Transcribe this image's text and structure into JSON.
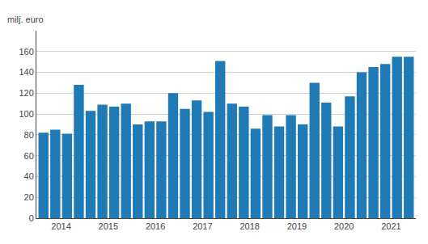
{
  "chart_data": {
    "type": "bar",
    "ylabel": "milj. euro",
    "categories": [
      2014,
      null,
      null,
      null,
      2015,
      null,
      null,
      null,
      2016,
      null,
      null,
      null,
      2017,
      null,
      null,
      null,
      2018,
      null,
      null,
      null,
      2019,
      null,
      null,
      null,
      2020,
      null,
      null,
      null,
      2021,
      null,
      null,
      null
    ],
    "values": [
      82,
      85,
      81,
      128,
      103,
      109,
      107,
      110,
      90,
      93,
      93,
      120,
      105,
      113,
      102,
      151,
      110,
      107,
      86,
      99,
      88,
      99,
      90,
      130,
      111,
      88,
      117,
      140,
      145,
      148,
      155,
      155
    ],
    "color": "#1f7ab5",
    "ylim": [
      0,
      180
    ],
    "yticks": [
      0,
      20,
      40,
      60,
      80,
      100,
      120,
      140,
      160
    ],
    "grid": true
  }
}
